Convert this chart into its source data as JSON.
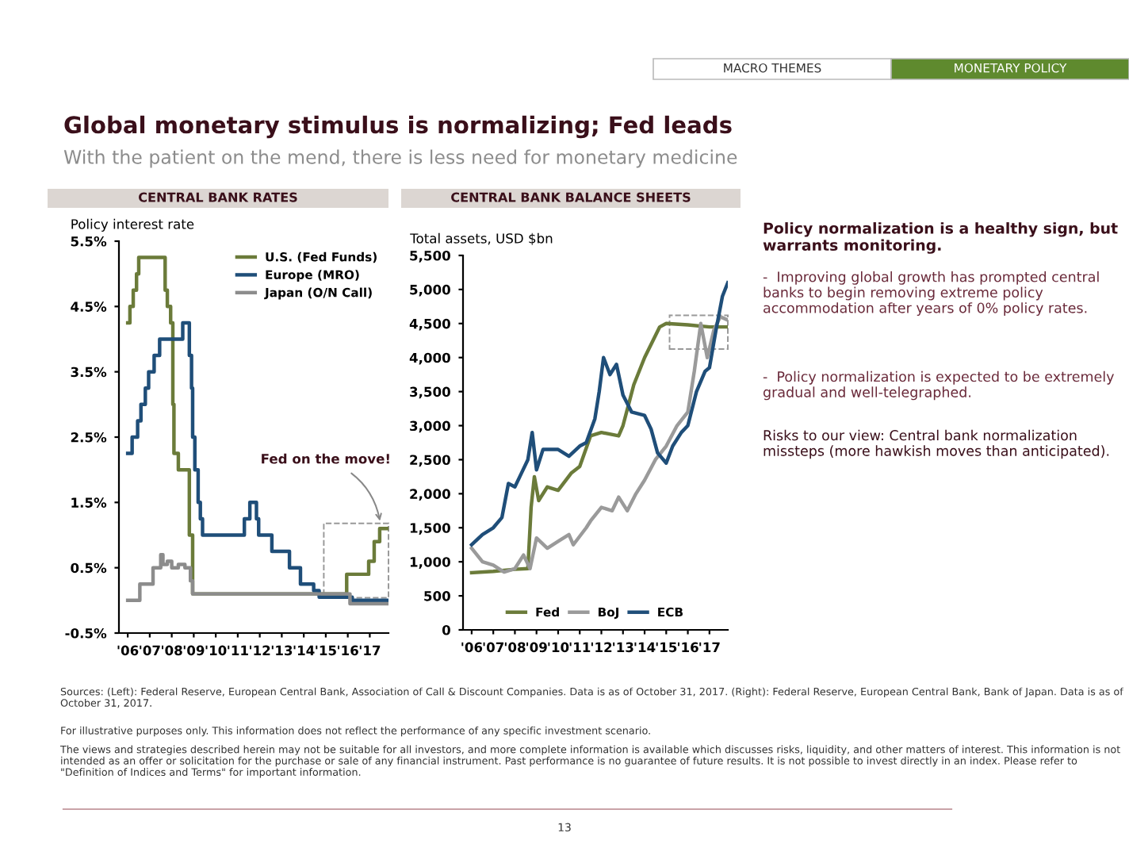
{
  "chart_data": [
    {
      "type": "other",
      "title": "Global monetary stimulus is normalizing; Fed leads",
      "subtitle": "With the patient on the mend, there is less need for monetary medicine",
      "annotations": [
        "MACRO THEMES",
        "MONETARY POLICY"
      ]
    },
    {
      "type": "step",
      "title": "CENTRAL BANK RATES",
      "ylabel": "Policy interest rate",
      "legend": "top right",
      "xlim": [
        2005.6,
        2017.85
      ],
      "ylim": [
        -0.5,
        5.5
      ],
      "xticks": [
        {
          "value": 2006,
          "label": "'06"
        },
        {
          "value": 2007,
          "label": "'07"
        },
        {
          "value": 2008,
          "label": "'08"
        },
        {
          "value": 2009,
          "label": "'09"
        },
        {
          "value": 2010,
          "label": "'10"
        },
        {
          "value": 2011,
          "label": "'11"
        },
        {
          "value": 2012,
          "label": "'12"
        },
        {
          "value": 2013,
          "label": "'13"
        },
        {
          "value": 2014,
          "label": "'14"
        },
        {
          "value": 2015,
          "label": "'15"
        },
        {
          "value": 2016,
          "label": "'16"
        },
        {
          "value": 2017,
          "label": "'17"
        }
      ],
      "yticks": [
        {
          "value": -0.5,
          "label": "-0.5%"
        },
        {
          "value": 0.5,
          "label": "0.5%"
        },
        {
          "value": 1.5,
          "label": "1.5%"
        },
        {
          "value": 2.5,
          "label": "2.5%"
        },
        {
          "value": 3.5,
          "label": "3.5%"
        },
        {
          "value": 4.5,
          "label": "4.5%"
        },
        {
          "value": 5.5,
          "label": "5.5%"
        }
      ],
      "series": [
        {
          "name": "U.S. (Fed Funds)",
          "color": "#6b7b3a",
          "x": [
            2006.0,
            2006.1,
            2006.25,
            2006.4,
            2006.5,
            2007.7,
            2007.8,
            2007.95,
            2008.05,
            2008.1,
            2008.3,
            2008.8,
            2008.95,
            2015.95,
            2016.95,
            2017.2,
            2017.45,
            2017.85
          ],
          "values": [
            4.25,
            4.5,
            4.75,
            5.0,
            5.25,
            4.75,
            4.5,
            4.25,
            3.0,
            2.25,
            2.0,
            1.0,
            0.1,
            0.4,
            0.6,
            0.9,
            1.1,
            1.1
          ]
        },
        {
          "name": "Europe (MRO)",
          "color": "#1f4e79",
          "x": [
            2006.0,
            2006.2,
            2006.45,
            2006.6,
            2006.8,
            2006.95,
            2007.2,
            2007.45,
            2008.5,
            2008.8,
            2008.9,
            2008.95,
            2009.05,
            2009.2,
            2009.3,
            2009.4,
            2011.3,
            2011.55,
            2011.85,
            2011.95,
            2012.55,
            2013.35,
            2013.85,
            2014.45,
            2014.7,
            2016.2,
            2017.85
          ],
          "values": [
            2.25,
            2.5,
            2.75,
            3.0,
            3.25,
            3.5,
            3.75,
            4.0,
            4.25,
            3.75,
            3.25,
            2.5,
            2.0,
            1.5,
            1.25,
            1.0,
            1.25,
            1.5,
            1.25,
            1.0,
            0.75,
            0.5,
            0.25,
            0.15,
            0.05,
            0.0,
            0.0
          ]
        },
        {
          "name": "Japan (O/N Call)",
          "color": "#8c8c8c",
          "x": [
            2006.0,
            2006.55,
            2007.15,
            2007.5,
            2007.6,
            2007.8,
            2008.0,
            2008.3,
            2008.6,
            2008.85,
            2008.95,
            2016.1,
            2017.85
          ],
          "values": [
            0.0,
            0.25,
            0.5,
            0.7,
            0.55,
            0.6,
            0.5,
            0.55,
            0.5,
            0.3,
            0.1,
            -0.05,
            -0.05
          ]
        }
      ],
      "annotations": [
        {
          "text": "Fed on the move!",
          "x": 2017.5,
          "y": 1.15
        }
      ]
    },
    {
      "type": "line",
      "title": "CENTRAL BANK BALANCE SHEETS",
      "ylabel": "Total assets, USD $bn",
      "legend": "bottom",
      "xlim": [
        2005.6,
        2017.85
      ],
      "ylim": [
        0,
        5500
      ],
      "xticks": [
        {
          "value": 2006,
          "label": "'06"
        },
        {
          "value": 2007,
          "label": "'07"
        },
        {
          "value": 2008,
          "label": "'08"
        },
        {
          "value": 2009,
          "label": "'09"
        },
        {
          "value": 2010,
          "label": "'10"
        },
        {
          "value": 2011,
          "label": "'11"
        },
        {
          "value": 2012,
          "label": "'12"
        },
        {
          "value": 2013,
          "label": "'13"
        },
        {
          "value": 2014,
          "label": "'14"
        },
        {
          "value": 2015,
          "label": "'15"
        },
        {
          "value": 2016,
          "label": "'16"
        },
        {
          "value": 2017,
          "label": "'17"
        }
      ],
      "yticks": [
        0,
        500,
        {
          "value": 1000,
          "label": "1,000"
        },
        {
          "value": 1500,
          "label": "1,500"
        },
        {
          "value": 2000,
          "label": "2,000"
        },
        {
          "value": 2500,
          "label": "2,500"
        },
        {
          "value": 3000,
          "label": "3,000"
        },
        {
          "value": 3500,
          "label": "3,500"
        },
        {
          "value": 4000,
          "label": "4,000"
        },
        {
          "value": 4500,
          "label": "4,500"
        },
        {
          "value": 5000,
          "label": "5,000"
        },
        {
          "value": 5500,
          "label": "5,500"
        }
      ],
      "series": [
        {
          "name": "Fed",
          "color": "#6b7b3a",
          "x": [
            2006.0,
            2007.0,
            2008.0,
            2008.6,
            2008.75,
            2008.9,
            2009.1,
            2009.5,
            2010.0,
            2010.6,
            2011.0,
            2011.5,
            2012.0,
            2012.8,
            2013.0,
            2013.5,
            2014.0,
            2014.7,
            2015.0,
            2016.0,
            2017.0,
            2017.85
          ],
          "values": [
            840,
            860,
            890,
            900,
            1800,
            2250,
            1900,
            2100,
            2050,
            2300,
            2400,
            2850,
            2900,
            2850,
            3000,
            3600,
            4000,
            4450,
            4500,
            4480,
            4450,
            4450
          ]
        },
        {
          "name": "BoJ",
          "color": "#9a9a9a",
          "x": [
            2006.0,
            2006.5,
            2007.0,
            2007.5,
            2008.0,
            2008.4,
            2008.7,
            2009.0,
            2009.5,
            2010.0,
            2010.5,
            2010.7,
            2011.3,
            2011.5,
            2012.0,
            2012.5,
            2012.8,
            2013.2,
            2013.6,
            2014.0,
            2014.5,
            2015.0,
            2015.5,
            2016.0,
            2016.3,
            2016.6,
            2016.9,
            2017.2,
            2017.5,
            2017.85
          ],
          "values": [
            1200,
            1000,
            950,
            850,
            900,
            1100,
            900,
            1350,
            1200,
            1300,
            1400,
            1250,
            1500,
            1600,
            1800,
            1750,
            1950,
            1750,
            2000,
            2200,
            2500,
            2700,
            3000,
            3200,
            3800,
            4500,
            4000,
            4400,
            4600,
            4550
          ]
        },
        {
          "name": "ECB",
          "color": "#1f4e79",
          "x": [
            2006.0,
            2006.5,
            2007.0,
            2007.4,
            2007.7,
            2008.0,
            2008.3,
            2008.6,
            2008.8,
            2009.0,
            2009.3,
            2010.0,
            2010.5,
            2011.0,
            2011.3,
            2011.7,
            2011.9,
            2012.1,
            2012.4,
            2012.7,
            2013.0,
            2013.4,
            2014.0,
            2014.3,
            2014.6,
            2015.0,
            2015.3,
            2015.7,
            2016.0,
            2016.4,
            2016.8,
            2017.0,
            2017.3,
            2017.6,
            2017.85
          ],
          "values": [
            1250,
            1400,
            1500,
            1650,
            2150,
            2100,
            2300,
            2500,
            2900,
            2350,
            2650,
            2650,
            2550,
            2700,
            2750,
            3100,
            3500,
            4000,
            3750,
            3900,
            3450,
            3200,
            3150,
            2950,
            2600,
            2450,
            2700,
            2900,
            3000,
            3500,
            3800,
            3850,
            4400,
            4900,
            5100
          ]
        }
      ]
    },
    {
      "type": "other",
      "title": "Policy normalization is a healthy sign, but warrants monitoring.",
      "annotations": [
        "-  Improving global growth has prompted central banks to begin removing extreme policy accommodation after years of 0% policy rates.",
        "-  Policy normalization is expected to be extremely gradual and well-telegraphed.",
        "Risks to our view: Central bank normalization missteps (more hawkish moves than anticipated)."
      ]
    },
    {
      "type": "other",
      "annotations": [
        "Sources: (Left): Federal Reserve, European Central Bank, Association of Call & Discount Companies. Data is as of October 31, 2017. (Right): Federal Reserve, European Central Bank, Bank of Japan. Data is as of October 31, 2017.",
        "For illustrative purposes only. This information does not reflect the performance of any specific investment scenario.",
        "The views and strategies described herein may not be suitable for all investors, and more complete information is available which discusses risks, liquidity, and other matters of interest. This information is not intended as an offer or solicitation for the purchase or sale of any financial instrument. Past performance is no guarantee of future results. It is not possible to invest directly in an index. Please refer to \"Definition of Indices and Terms\" for important information.",
        "13"
      ]
    }
  ]
}
